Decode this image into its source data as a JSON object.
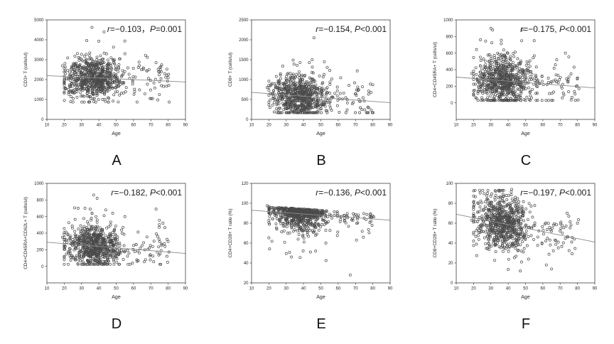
{
  "figure": {
    "background": "#ffffff",
    "axis_color": "#3f3f3f",
    "point_color": "#4a4a4a",
    "trend_color": "#8a8a8a",
    "tick_text_color": "#222222",
    "annotation_color": "#1a1a1a"
  },
  "chart_data": [
    {
      "label": "A",
      "type": "scatter",
      "xlabel": "Age",
      "ylabel": "CD3+ T (cells/ul)",
      "xlim": [
        10,
        90
      ],
      "xticks": [
        10,
        20,
        30,
        40,
        50,
        60,
        70,
        80,
        90
      ],
      "ylim": [
        0,
        5000
      ],
      "yticks": [
        0,
        1000,
        2000,
        3000,
        4000,
        5000
      ],
      "annotation": {
        "lhs": "r=−0.103",
        "sep": "，",
        "rhs": "P=0.001"
      },
      "trend": {
        "x": [
          10,
          90
        ],
        "y": [
          2200,
          1880
        ]
      },
      "scatter": {
        "seed": 101,
        "n": 720,
        "age_mean": 37.5,
        "age_sd": 8.2,
        "age_min": 20,
        "age_max": 59.5,
        "n_old": 48,
        "old_age_min": 59.5,
        "old_age_max": 81,
        "model": "normal",
        "noise_sd": 540,
        "y_clip": [
          870,
          4300
        ]
      },
      "extra_points": [
        [
          36,
          4620
        ],
        [
          43,
          4400
        ],
        [
          33,
          3960
        ],
        [
          40,
          3930
        ],
        [
          55,
          3940
        ],
        [
          30,
          3270
        ],
        [
          68,
          3120
        ],
        [
          19,
          2700
        ],
        [
          73,
          2850
        ],
        [
          76,
          2400
        ],
        [
          78,
          2300
        ],
        [
          80,
          2100
        ],
        [
          75,
          1900
        ],
        [
          71,
          1050
        ],
        [
          74,
          980
        ]
      ]
    },
    {
      "label": "B",
      "type": "scatter",
      "xlabel": "Age",
      "ylabel": "CD8+ T (cells/ul)",
      "xlim": [
        10,
        90
      ],
      "xticks": [
        10,
        20,
        30,
        40,
        50,
        60,
        70,
        80,
        90
      ],
      "ylim": [
        0,
        2500
      ],
      "yticks": [
        0,
        500,
        1000,
        1500,
        2000,
        2500
      ],
      "annotation": {
        "lhs": "r=−0.154",
        "sep": ", ",
        "rhs": "P<0.001"
      },
      "trend": {
        "x": [
          10,
          90
        ],
        "y": [
          680,
          420
        ]
      },
      "scatter": {
        "seed": 202,
        "n": 720,
        "age_mean": 37.5,
        "age_sd": 8.2,
        "age_min": 20,
        "age_max": 59.5,
        "n_old": 48,
        "old_age_min": 59.5,
        "old_age_max": 81,
        "model": "normal",
        "noise_sd": 255,
        "y_clip": [
          170,
          1530
        ]
      },
      "extra_points": [
        [
          46,
          2050
        ],
        [
          34,
          1490
        ],
        [
          45,
          1500
        ],
        [
          52,
          1450
        ],
        [
          38,
          1430
        ],
        [
          28,
          1340
        ],
        [
          71,
          1220
        ],
        [
          80,
          870
        ],
        [
          19,
          800
        ]
      ]
    },
    {
      "label": "C",
      "type": "scatter",
      "xlabel": "Age",
      "ylabel": "CD4+CD45RA+ T (cells/ul)",
      "xlim": [
        10,
        90
      ],
      "xticks": [
        10,
        20,
        30,
        40,
        50,
        60,
        70,
        80,
        90
      ],
      "ylim": [
        -200,
        1000
      ],
      "yticks": [
        0,
        200,
        400,
        600,
        800,
        1000
      ],
      "annotation": {
        "lhs": "r=−0.175",
        "sep": ", ",
        "rhs": "P<0.001"
      },
      "trend": {
        "x": [
          10,
          90
        ],
        "y": [
          310,
          180
        ]
      },
      "scatter": {
        "seed": 303,
        "n": 720,
        "age_mean": 37.5,
        "age_sd": 8.2,
        "age_min": 20,
        "age_max": 59.5,
        "n_old": 48,
        "old_age_min": 59.5,
        "old_age_max": 81,
        "model": "normal",
        "noise_sd": 148,
        "y_clip": [
          30,
          770
        ]
      },
      "extra_points": [
        [
          30,
          900
        ],
        [
          31,
          878
        ],
        [
          48,
          880
        ],
        [
          24,
          760
        ],
        [
          27,
          745
        ],
        [
          36,
          755
        ],
        [
          55,
          750
        ],
        [
          73,
          600
        ],
        [
          75,
          555
        ],
        [
          68,
          520
        ],
        [
          19,
          355
        ],
        [
          78,
          430
        ],
        [
          80,
          300
        ]
      ]
    },
    {
      "label": "D",
      "type": "scatter",
      "xlabel": "Age",
      "ylabel": "CD4+CD45RA+CD62L+ T (cells/ul)",
      "xlim": [
        10,
        90
      ],
      "xticks": [
        10,
        20,
        30,
        40,
        50,
        60,
        70,
        80,
        90
      ],
      "ylim": [
        -200,
        1000
      ],
      "yticks": [
        0,
        200,
        400,
        600,
        800,
        1000
      ],
      "annotation": {
        "lhs": "r=−0.182",
        "sep": ", ",
        "rhs": "P<0.001"
      },
      "trend": {
        "x": [
          10,
          90
        ],
        "y": [
          290,
          155
        ]
      },
      "scatter": {
        "seed": 404,
        "n": 720,
        "age_mean": 37.5,
        "age_sd": 8.2,
        "age_min": 20,
        "age_max": 59.5,
        "n_old": 48,
        "old_age_min": 59.5,
        "old_age_max": 81,
        "model": "normal",
        "noise_sd": 132,
        "y_clip": [
          25,
          640
        ]
      },
      "extra_points": [
        [
          37,
          860
        ],
        [
          39,
          820
        ],
        [
          28,
          700
        ],
        [
          32,
          700
        ],
        [
          35,
          690
        ],
        [
          44,
          680
        ],
        [
          26,
          705
        ],
        [
          73,
          690
        ],
        [
          48,
          640
        ],
        [
          55,
          600
        ],
        [
          75,
          555
        ],
        [
          77,
          520
        ],
        [
          19,
          350
        ],
        [
          80,
          300
        ],
        [
          67,
          80
        ],
        [
          62,
          60
        ]
      ]
    },
    {
      "label": "E",
      "type": "scatter",
      "xlabel": "Age",
      "ylabel": "CD4+CD28+ T ratio (%)",
      "xlim": [
        10,
        90
      ],
      "xticks": [
        10,
        20,
        30,
        40,
        50,
        60,
        70,
        80,
        90
      ],
      "ylim": [
        20,
        120
      ],
      "yticks": [
        20,
        40,
        60,
        80,
        100,
        120
      ],
      "annotation": {
        "lhs": "r=−0.136",
        "sep": ", ",
        "rhs": "P<0.001"
      },
      "trend": {
        "x": [
          10,
          90
        ],
        "y": [
          93,
          83
        ]
      },
      "scatter": {
        "seed": 505,
        "n": 720,
        "age_mean": 37.5,
        "age_sd": 8.2,
        "age_min": 20,
        "age_max": 59.5,
        "n_old": 48,
        "old_age_min": 59.5,
        "old_age_max": 81,
        "model": "top_skew",
        "skew_shift": 5,
        "skew_sd": 6.5,
        "tail_prob": 0.16,
        "tail_base": 6,
        "tail_sd": 12,
        "y_clip": [
          28,
          99.8
        ]
      },
      "extra_points": [
        [
          67,
          28
        ],
        [
          53,
          42.5
        ],
        [
          38,
          45.5
        ],
        [
          30,
          49.5
        ],
        [
          44,
          51
        ],
        [
          47,
          52
        ],
        [
          33,
          46
        ],
        [
          19,
          97.5
        ]
      ]
    },
    {
      "label": "F",
      "type": "scatter",
      "xlabel": "Age",
      "ylabel": "CD8+CD28+ T ratio (%)",
      "xlim": [
        10,
        90
      ],
      "xticks": [
        10,
        20,
        30,
        40,
        50,
        60,
        70,
        80,
        90
      ],
      "ylim": [
        0,
        100
      ],
      "yticks": [
        0,
        20,
        40,
        60,
        80,
        100
      ],
      "annotation": {
        "lhs": "r=−0.197",
        "sep": ", ",
        "rhs": "P<0.001"
      },
      "trend": {
        "x": [
          10,
          90
        ],
        "y": [
          69,
          41
        ]
      },
      "scatter": {
        "seed": 606,
        "n": 720,
        "age_mean": 37.5,
        "age_sd": 8.2,
        "age_min": 20,
        "age_max": 59.5,
        "n_old": 48,
        "old_age_min": 59.5,
        "old_age_max": 81,
        "model": "normal",
        "noise_sd": 14,
        "y_clip": [
          12,
          93
        ]
      },
      "extra_points": [
        [
          42,
          94
        ],
        [
          35,
          92
        ],
        [
          28,
          90
        ],
        [
          40,
          13.5
        ],
        [
          47,
          12
        ],
        [
          65,
          14
        ],
        [
          62,
          18
        ],
        [
          74,
          70
        ],
        [
          75,
          67
        ],
        [
          80,
          60
        ],
        [
          19,
          63
        ]
      ]
    }
  ]
}
